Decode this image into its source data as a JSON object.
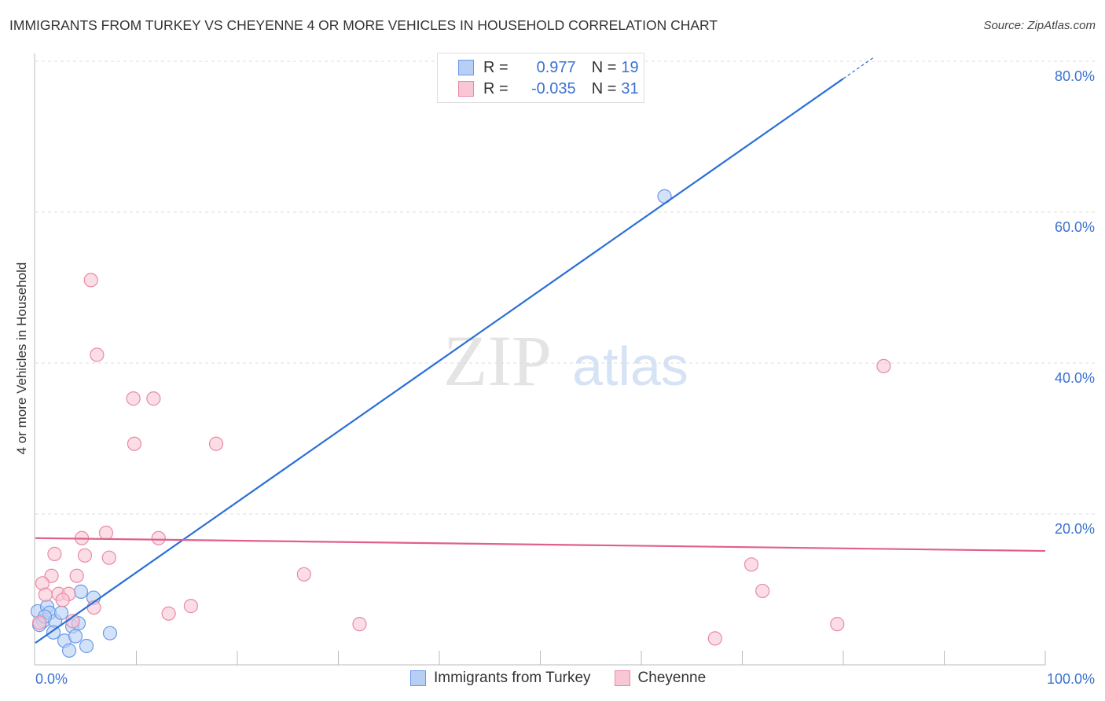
{
  "chart_data": {
    "type": "scatter",
    "title": "IMMIGRANTS FROM TURKEY VS CHEYENNE 4 OR MORE VEHICLES IN HOUSEHOLD CORRELATION CHART",
    "source": "Source: ZipAtlas.com",
    "xlabel": "",
    "ylabel": "4 or more Vehicles in Household",
    "xlim": [
      0,
      100
    ],
    "ylim": [
      0,
      80
    ],
    "x_tick_labels": [
      "0.0%",
      "100.0%"
    ],
    "y_ticks": [
      20,
      40,
      60,
      80
    ],
    "y_tick_labels": [
      "20.0%",
      "40.0%",
      "60.0%",
      "80.0%"
    ],
    "grid": true,
    "legend_placement": "top-center",
    "watermark": "ZIPatlas",
    "series": [
      {
        "name": "Immigrants from Turkey",
        "color": "#6a9be6",
        "fill": "#b7cff5",
        "R": "0.977",
        "N": "19",
        "trend": {
          "intercept": 2.9,
          "slope": 0.935,
          "solid_to": 80,
          "dashed_to": 83
        },
        "points": [
          [
            0.23,
            7.1
          ],
          [
            0.78,
            5.8
          ],
          [
            1.17,
            7.7
          ],
          [
            1.4,
            6.9
          ],
          [
            1.95,
            5.8
          ],
          [
            2.57,
            6.9
          ],
          [
            1.79,
            4.3
          ],
          [
            2.88,
            3.2
          ],
          [
            3.35,
            1.9
          ],
          [
            3.66,
            5.1
          ],
          [
            3.97,
            3.8
          ],
          [
            4.28,
            5.5
          ],
          [
            4.51,
            9.7
          ],
          [
            5.06,
            2.5
          ],
          [
            5.76,
            8.9
          ],
          [
            7.39,
            4.2
          ],
          [
            62.3,
            62.1
          ],
          [
            0.39,
            5.3
          ],
          [
            0.93,
            6.4
          ]
        ]
      },
      {
        "name": "Cheyenne",
        "color": "#e88aa6",
        "fill": "#f8c6d5",
        "R": "-0.035",
        "N": "31",
        "trend": {
          "intercept": 16.8,
          "slope": -0.017,
          "solid_to": 100
        },
        "points": [
          [
            5.5,
            51.0
          ],
          [
            6.1,
            41.1
          ],
          [
            9.7,
            35.3
          ],
          [
            11.7,
            35.3
          ],
          [
            9.8,
            29.3
          ],
          [
            17.9,
            29.3
          ],
          [
            84.0,
            39.6
          ],
          [
            7.0,
            17.5
          ],
          [
            4.6,
            16.8
          ],
          [
            12.2,
            16.8
          ],
          [
            1.9,
            14.7
          ],
          [
            4.9,
            14.5
          ],
          [
            7.3,
            14.2
          ],
          [
            1.6,
            11.8
          ],
          [
            4.1,
            11.8
          ],
          [
            26.6,
            12.0
          ],
          [
            70.9,
            13.3
          ],
          [
            0.7,
            10.8
          ],
          [
            1.0,
            9.3
          ],
          [
            2.3,
            9.4
          ],
          [
            3.3,
            9.4
          ],
          [
            2.7,
            8.6
          ],
          [
            5.8,
            7.6
          ],
          [
            15.4,
            7.8
          ],
          [
            13.2,
            6.8
          ],
          [
            72.0,
            9.8
          ],
          [
            32.1,
            5.4
          ],
          [
            79.4,
            5.4
          ],
          [
            67.3,
            3.5
          ],
          [
            0.4,
            5.6
          ],
          [
            3.7,
            5.8
          ]
        ]
      }
    ]
  },
  "legend": {
    "r_label": "R =",
    "n_label": "N ="
  }
}
